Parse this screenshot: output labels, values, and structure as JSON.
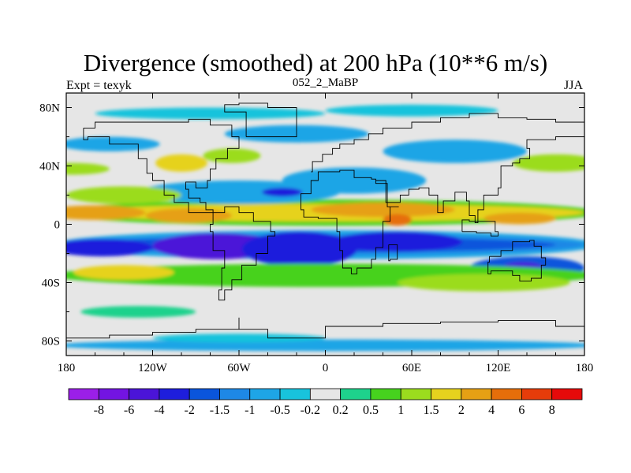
{
  "title": "Divergence (smoothed) at 200 hPa (10**6 m/s)",
  "subtitle_left": "Expt = texyk",
  "subtitle_center": "052_2_MaBP",
  "subtitle_right": "JJA",
  "chart_data": {
    "type": "heatmap",
    "projection": "cylindrical equidistant",
    "xlim": [
      -180,
      180
    ],
    "ylim": [
      -90,
      90
    ],
    "x_ticks": [
      {
        "value": -180,
        "label": "180"
      },
      {
        "value": -120,
        "label": "120W"
      },
      {
        "value": -60,
        "label": "60W"
      },
      {
        "value": 0,
        "label": "0"
      },
      {
        "value": 60,
        "label": "60E"
      },
      {
        "value": 120,
        "label": "120E"
      },
      {
        "value": 180,
        "label": "180"
      }
    ],
    "y_ticks": [
      {
        "value": 80,
        "label": "80N"
      },
      {
        "value": 40,
        "label": "40N"
      },
      {
        "value": 0,
        "label": "0"
      },
      {
        "value": -40,
        "label": "40S"
      },
      {
        "value": -80,
        "label": "80S"
      }
    ],
    "colorbar": {
      "levels": [
        "-8",
        "-6",
        "-4",
        "-2",
        "-1.5",
        "-1",
        "-0.5",
        "-0.2",
        "0.2",
        "0.5",
        "1",
        "1.5",
        "2",
        "4",
        "6",
        "8"
      ],
      "colors": [
        "#9b1fe8",
        "#7314e2",
        "#4b14d8",
        "#1e1edc",
        "#0a55dc",
        "#1e88e6",
        "#1ea5e6",
        "#18c3dc",
        "#e6e6e6",
        "#1ed28c",
        "#46d21e",
        "#9bdc1e",
        "#e6d21e",
        "#e6a014",
        "#e66e0a",
        "#e63c0a",
        "#e60a0a"
      ]
    },
    "field_description": {
      "convergence_belt_latitude": -15,
      "divergence_belt_latitude": 10
    }
  }
}
